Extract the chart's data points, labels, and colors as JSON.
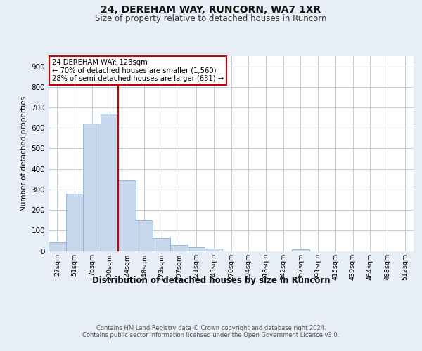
{
  "title1": "24, DEREHAM WAY, RUNCORN, WA7 1XR",
  "title2": "Size of property relative to detached houses in Runcorn",
  "xlabel": "Distribution of detached houses by size in Runcorn",
  "ylabel": "Number of detached properties",
  "footer": "Contains HM Land Registry data © Crown copyright and database right 2024.\nContains public sector information licensed under the Open Government Licence v3.0.",
  "bin_labels": [
    "27sqm",
    "51sqm",
    "76sqm",
    "100sqm",
    "124sqm",
    "148sqm",
    "173sqm",
    "197sqm",
    "221sqm",
    "245sqm",
    "270sqm",
    "294sqm",
    "318sqm",
    "342sqm",
    "367sqm",
    "391sqm",
    "415sqm",
    "439sqm",
    "464sqm",
    "488sqm",
    "512sqm"
  ],
  "bar_heights": [
    42,
    278,
    621,
    668,
    345,
    148,
    62,
    30,
    18,
    12,
    0,
    0,
    0,
    0,
    8,
    0,
    0,
    0,
    0,
    0,
    0
  ],
  "bar_color": "#c8d8ec",
  "bar_edge_color": "#8ab0d0",
  "property_label": "24 DEREHAM WAY: 123sqm",
  "annotation_line1": "← 70% of detached houses are smaller (1,560)",
  "annotation_line2": "28% of semi-detached houses are larger (631) →",
  "vline_color": "#cc0000",
  "ylim": [
    0,
    950
  ],
  "yticks": [
    0,
    100,
    200,
    300,
    400,
    500,
    600,
    700,
    800,
    900
  ],
  "bg_color": "#e8eef5",
  "plot_bg_color": "#ffffff",
  "grid_color": "#c0ccd8",
  "vline_pos": 4.0
}
